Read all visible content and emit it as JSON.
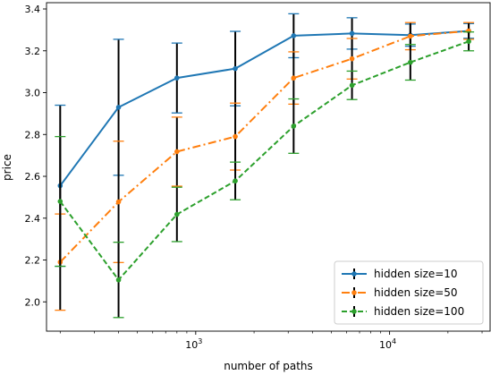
{
  "chart_data": {
    "type": "line",
    "title": "",
    "xlabel": "number of paths",
    "ylabel": "price",
    "xscale": "log",
    "xlim": [
      170,
      33000
    ],
    "ylim": [
      1.86,
      3.43
    ],
    "x": [
      200,
      400,
      800,
      1600,
      3200,
      6400,
      12800,
      25600
    ],
    "x_ticks": [
      {
        "value": 1000,
        "base": "10",
        "exp": "3"
      },
      {
        "value": 10000,
        "base": "10",
        "exp": "4"
      }
    ],
    "y_ticks": [
      2.0,
      2.2,
      2.4,
      2.6,
      2.8,
      3.0,
      3.2,
      3.4
    ],
    "grid": false,
    "legend_position": "lower-right",
    "errorbar_color": "#000000",
    "series": [
      {
        "name": "hidden size=10",
        "color": "#1f77b4",
        "linestyle": "solid",
        "values": [
          2.555,
          2.93,
          3.07,
          3.115,
          3.272,
          3.283,
          3.275,
          3.295
        ],
        "err": [
          0.385,
          0.325,
          0.167,
          0.178,
          0.105,
          0.075,
          0.053,
          0.035
        ]
      },
      {
        "name": "hidden size=50",
        "color": "#ff7f0e",
        "linestyle": "dashdot",
        "values": [
          2.19,
          2.478,
          2.718,
          2.79,
          3.07,
          3.162,
          3.27,
          3.295
        ],
        "err": [
          0.23,
          0.29,
          0.165,
          0.16,
          0.125,
          0.097,
          0.065,
          0.04
        ]
      },
      {
        "name": "hidden size=100",
        "color": "#2ca02c",
        "linestyle": "dashed",
        "values": [
          2.48,
          2.105,
          2.418,
          2.578,
          2.84,
          3.035,
          3.145,
          3.245
        ],
        "err": [
          0.31,
          0.18,
          0.13,
          0.09,
          0.13,
          0.068,
          0.085,
          0.045
        ]
      }
    ]
  }
}
